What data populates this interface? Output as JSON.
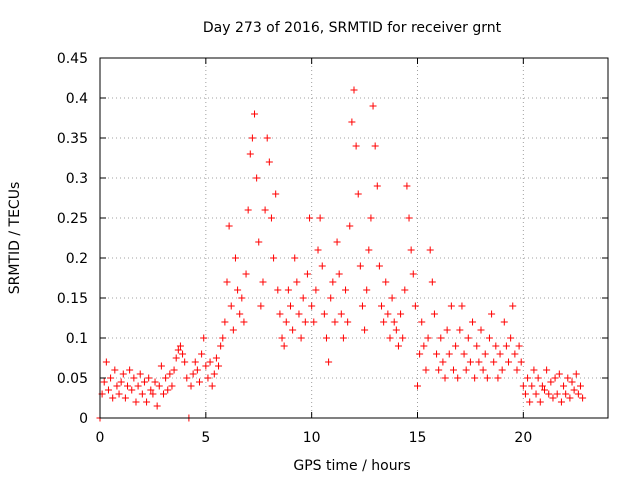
{
  "chart_data": {
    "type": "scatter",
    "title": "Day 273 of 2016, SRMTID for receiver grnt",
    "xlabel": "GPS time / hours",
    "ylabel": "SRMTID / TECUs",
    "xlim": [
      0,
      24
    ],
    "ylim": [
      0,
      0.45
    ],
    "grid": true,
    "xticks": [
      0,
      5,
      10,
      15,
      20
    ],
    "xtick_labels": [
      "0",
      "5",
      "10",
      "15",
      "20"
    ],
    "yticks": [
      0,
      0.05,
      0.1,
      0.15,
      0.2,
      0.25,
      0.3,
      0.35,
      0.4,
      0.45
    ],
    "ytick_labels": [
      "0",
      "0.05",
      "0.1",
      "0.15",
      "0.2",
      "0.25",
      "0.3",
      "0.35",
      "0.4",
      "0.45"
    ],
    "marker_color": "#ff0000",
    "series": [
      {
        "name": "SRMTID",
        "marker": "plus",
        "points": [
          [
            0.0,
            0.0
          ],
          [
            4.2,
            0.0
          ],
          [
            0.1,
            0.03
          ],
          [
            0.2,
            0.045
          ],
          [
            0.3,
            0.07
          ],
          [
            0.4,
            0.035
          ],
          [
            0.5,
            0.05
          ],
          [
            0.6,
            0.025
          ],
          [
            0.7,
            0.06
          ],
          [
            0.8,
            0.04
          ],
          [
            0.9,
            0.03
          ],
          [
            1.0,
            0.045
          ],
          [
            1.1,
            0.055
          ],
          [
            1.2,
            0.025
          ],
          [
            1.3,
            0.04
          ],
          [
            1.4,
            0.06
          ],
          [
            1.5,
            0.035
          ],
          [
            1.6,
            0.05
          ],
          [
            1.7,
            0.02
          ],
          [
            1.8,
            0.04
          ],
          [
            1.9,
            0.055
          ],
          [
            2.0,
            0.03
          ],
          [
            2.1,
            0.045
          ],
          [
            2.2,
            0.02
          ],
          [
            2.3,
            0.05
          ],
          [
            2.4,
            0.035
          ],
          [
            2.5,
            0.03
          ],
          [
            2.6,
            0.045
          ],
          [
            2.7,
            0.015
          ],
          [
            2.8,
            0.04
          ],
          [
            2.9,
            0.065
          ],
          [
            3.0,
            0.03
          ],
          [
            3.1,
            0.05
          ],
          [
            3.2,
            0.035
          ],
          [
            3.3,
            0.055
          ],
          [
            3.4,
            0.04
          ],
          [
            3.5,
            0.06
          ],
          [
            3.6,
            0.075
          ],
          [
            3.7,
            0.085
          ],
          [
            3.8,
            0.09
          ],
          [
            3.9,
            0.08
          ],
          [
            4.0,
            0.07
          ],
          [
            4.1,
            0.05
          ],
          [
            4.3,
            0.04
          ],
          [
            4.4,
            0.055
          ],
          [
            4.5,
            0.07
          ],
          [
            4.6,
            0.06
          ],
          [
            4.7,
            0.045
          ],
          [
            4.8,
            0.08
          ],
          [
            4.9,
            0.1
          ],
          [
            5.0,
            0.065
          ],
          [
            5.1,
            0.05
          ],
          [
            5.2,
            0.07
          ],
          [
            5.3,
            0.04
          ],
          [
            5.4,
            0.055
          ],
          [
            5.5,
            0.075
          ],
          [
            5.6,
            0.065
          ],
          [
            5.7,
            0.09
          ],
          [
            5.8,
            0.1
          ],
          [
            5.9,
            0.12
          ],
          [
            6.0,
            0.17
          ],
          [
            6.1,
            0.24
          ],
          [
            6.2,
            0.14
          ],
          [
            6.3,
            0.11
          ],
          [
            6.4,
            0.2
          ],
          [
            6.5,
            0.16
          ],
          [
            6.6,
            0.13
          ],
          [
            6.7,
            0.15
          ],
          [
            6.8,
            0.12
          ],
          [
            6.9,
            0.18
          ],
          [
            7.0,
            0.26
          ],
          [
            7.1,
            0.33
          ],
          [
            7.2,
            0.35
          ],
          [
            7.3,
            0.38
          ],
          [
            7.4,
            0.3
          ],
          [
            7.5,
            0.22
          ],
          [
            7.6,
            0.14
          ],
          [
            7.7,
            0.17
          ],
          [
            7.8,
            0.26
          ],
          [
            7.9,
            0.35
          ],
          [
            8.0,
            0.32
          ],
          [
            8.1,
            0.25
          ],
          [
            8.2,
            0.2
          ],
          [
            8.3,
            0.28
          ],
          [
            8.4,
            0.16
          ],
          [
            8.5,
            0.13
          ],
          [
            8.6,
            0.1
          ],
          [
            8.7,
            0.09
          ],
          [
            8.8,
            0.12
          ],
          [
            8.9,
            0.16
          ],
          [
            9.0,
            0.14
          ],
          [
            9.1,
            0.11
          ],
          [
            9.2,
            0.2
          ],
          [
            9.3,
            0.17
          ],
          [
            9.4,
            0.13
          ],
          [
            9.5,
            0.1
          ],
          [
            9.6,
            0.15
          ],
          [
            9.7,
            0.12
          ],
          [
            9.8,
            0.18
          ],
          [
            9.9,
            0.25
          ],
          [
            10.0,
            0.14
          ],
          [
            10.1,
            0.12
          ],
          [
            10.2,
            0.16
          ],
          [
            10.3,
            0.21
          ],
          [
            10.4,
            0.25
          ],
          [
            10.5,
            0.19
          ],
          [
            10.6,
            0.13
          ],
          [
            10.7,
            0.1
          ],
          [
            10.8,
            0.07
          ],
          [
            10.9,
            0.15
          ],
          [
            11.0,
            0.17
          ],
          [
            11.1,
            0.12
          ],
          [
            11.2,
            0.22
          ],
          [
            11.3,
            0.18
          ],
          [
            11.4,
            0.13
          ],
          [
            11.5,
            0.1
          ],
          [
            11.6,
            0.16
          ],
          [
            11.7,
            0.12
          ],
          [
            11.8,
            0.24
          ],
          [
            11.9,
            0.37
          ],
          [
            12.0,
            0.41
          ],
          [
            12.1,
            0.34
          ],
          [
            12.2,
            0.28
          ],
          [
            12.3,
            0.19
          ],
          [
            12.4,
            0.14
          ],
          [
            12.5,
            0.11
          ],
          [
            12.6,
            0.16
          ],
          [
            12.7,
            0.21
          ],
          [
            12.8,
            0.25
          ],
          [
            12.9,
            0.39
          ],
          [
            13.0,
            0.34
          ],
          [
            13.1,
            0.29
          ],
          [
            13.2,
            0.19
          ],
          [
            13.3,
            0.14
          ],
          [
            13.4,
            0.12
          ],
          [
            13.5,
            0.17
          ],
          [
            13.6,
            0.13
          ],
          [
            13.7,
            0.1
          ],
          [
            13.8,
            0.15
          ],
          [
            13.9,
            0.12
          ],
          [
            14.0,
            0.11
          ],
          [
            14.1,
            0.09
          ],
          [
            14.2,
            0.13
          ],
          [
            14.3,
            0.1
          ],
          [
            14.4,
            0.16
          ],
          [
            14.5,
            0.29
          ],
          [
            14.6,
            0.25
          ],
          [
            14.7,
            0.21
          ],
          [
            14.8,
            0.18
          ],
          [
            14.9,
            0.14
          ],
          [
            15.0,
            0.04
          ],
          [
            15.1,
            0.08
          ],
          [
            15.2,
            0.12
          ],
          [
            15.3,
            0.09
          ],
          [
            15.4,
            0.06
          ],
          [
            15.5,
            0.1
          ],
          [
            15.6,
            0.21
          ],
          [
            15.7,
            0.17
          ],
          [
            15.8,
            0.13
          ],
          [
            15.9,
            0.08
          ],
          [
            16.0,
            0.06
          ],
          [
            16.1,
            0.1
          ],
          [
            16.2,
            0.07
          ],
          [
            16.3,
            0.05
          ],
          [
            16.4,
            0.11
          ],
          [
            16.5,
            0.08
          ],
          [
            16.6,
            0.14
          ],
          [
            16.7,
            0.06
          ],
          [
            16.8,
            0.09
          ],
          [
            16.9,
            0.05
          ],
          [
            17.0,
            0.11
          ],
          [
            17.1,
            0.14
          ],
          [
            17.2,
            0.08
          ],
          [
            17.3,
            0.06
          ],
          [
            17.4,
            0.1
          ],
          [
            17.5,
            0.07
          ],
          [
            17.6,
            0.12
          ],
          [
            17.7,
            0.05
          ],
          [
            17.8,
            0.09
          ],
          [
            17.9,
            0.07
          ],
          [
            18.0,
            0.11
          ],
          [
            18.1,
            0.06
          ],
          [
            18.2,
            0.08
          ],
          [
            18.3,
            0.05
          ],
          [
            18.4,
            0.1
          ],
          [
            18.5,
            0.13
          ],
          [
            18.6,
            0.07
          ],
          [
            18.7,
            0.09
          ],
          [
            18.8,
            0.05
          ],
          [
            18.9,
            0.08
          ],
          [
            19.0,
            0.06
          ],
          [
            19.1,
            0.12
          ],
          [
            19.2,
            0.09
          ],
          [
            19.3,
            0.07
          ],
          [
            19.4,
            0.1
          ],
          [
            19.5,
            0.14
          ],
          [
            19.6,
            0.08
          ],
          [
            19.7,
            0.06
          ],
          [
            19.8,
            0.09
          ],
          [
            19.9,
            0.07
          ],
          [
            20.0,
            0.04
          ],
          [
            20.1,
            0.03
          ],
          [
            20.2,
            0.05
          ],
          [
            20.3,
            0.02
          ],
          [
            20.4,
            0.04
          ],
          [
            20.5,
            0.06
          ],
          [
            20.6,
            0.03
          ],
          [
            20.7,
            0.05
          ],
          [
            20.8,
            0.02
          ],
          [
            20.9,
            0.04
          ],
          [
            21.0,
            0.035
          ],
          [
            21.1,
            0.06
          ],
          [
            21.2,
            0.03
          ],
          [
            21.3,
            0.045
          ],
          [
            21.4,
            0.025
          ],
          [
            21.5,
            0.05
          ],
          [
            21.6,
            0.03
          ],
          [
            21.7,
            0.055
          ],
          [
            21.8,
            0.02
          ],
          [
            21.9,
            0.04
          ],
          [
            22.0,
            0.03
          ],
          [
            22.1,
            0.05
          ],
          [
            22.2,
            0.025
          ],
          [
            22.3,
            0.045
          ],
          [
            22.4,
            0.035
          ],
          [
            22.5,
            0.055
          ],
          [
            22.6,
            0.03
          ],
          [
            22.7,
            0.04
          ],
          [
            22.8,
            0.025
          ]
        ]
      }
    ]
  }
}
